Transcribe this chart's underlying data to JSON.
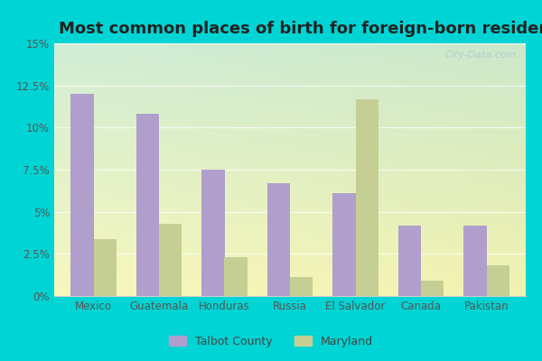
{
  "title": "Most common places of birth for foreign-born residents",
  "categories": [
    "Mexico",
    "Guatemala",
    "Honduras",
    "Russia",
    "El Salvador",
    "Canada",
    "Pakistan"
  ],
  "talbot_county": [
    12.0,
    10.8,
    7.5,
    6.7,
    6.1,
    4.2,
    4.2
  ],
  "maryland": [
    3.4,
    4.3,
    2.3,
    1.1,
    11.7,
    0.9,
    1.8
  ],
  "talbot_color": "#b09fcc",
  "maryland_color": "#c5cf94",
  "outer_bg": "#00d4d4",
  "title_fontsize": 13,
  "legend_labels": [
    "Talbot County",
    "Maryland"
  ],
  "ylim": [
    0,
    15
  ],
  "yticks": [
    0,
    2.5,
    5.0,
    7.5,
    10.0,
    12.5,
    15.0
  ],
  "bar_width": 0.35,
  "watermark": "City-Data.com"
}
